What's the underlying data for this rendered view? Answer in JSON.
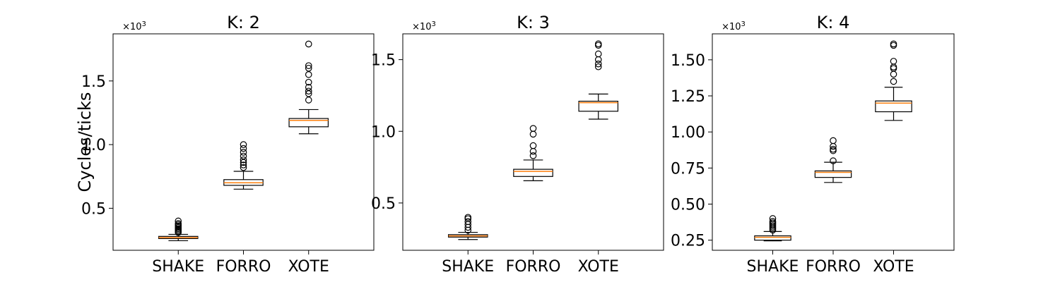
{
  "chart_data": [
    {
      "type": "box",
      "title": "K: 2",
      "ylabel": "Cycles/ticks",
      "multiplier": "×10",
      "multiplier_exp": "3",
      "ylim": [
        0.17,
        1.87
      ],
      "yticks": [
        0.5,
        1.0,
        1.5
      ],
      "ytick_labels": [
        "0.5",
        "1.0",
        "1.5"
      ],
      "categories": [
        "SHAKE",
        "FORRO",
        "XOTE"
      ],
      "boxes": [
        {
          "whislo": 0.245,
          "q1": 0.262,
          "med": 0.27,
          "q3": 0.279,
          "whishi": 0.295,
          "fliers": [
            0.31,
            0.32,
            0.33,
            0.34,
            0.35,
            0.36,
            0.37,
            0.38,
            0.4
          ]
        },
        {
          "whislo": 0.65,
          "q1": 0.68,
          "med": 0.7,
          "q3": 0.725,
          "whishi": 0.79,
          "fliers": [
            0.82,
            0.84,
            0.86,
            0.88,
            0.91,
            0.94,
            0.97,
            1.0
          ]
        },
        {
          "whislo": 1.085,
          "q1": 1.14,
          "med": 1.19,
          "q3": 1.205,
          "whishi": 1.275,
          "fliers": [
            1.35,
            1.4,
            1.42,
            1.45,
            1.49,
            1.55,
            1.6,
            1.62,
            1.79
          ]
        }
      ]
    },
    {
      "type": "box",
      "title": "K: 3",
      "ylabel": "",
      "multiplier": "×10",
      "multiplier_exp": "3",
      "ylim": [
        0.17,
        1.68
      ],
      "yticks": [
        0.5,
        1.0,
        1.5
      ],
      "ytick_labels": [
        "0.5",
        "1.0",
        "1.5"
      ],
      "categories": [
        "SHAKE",
        "FORRO",
        "XOTE"
      ],
      "boxes": [
        {
          "whislo": 0.245,
          "q1": 0.262,
          "med": 0.27,
          "q3": 0.279,
          "whishi": 0.295,
          "fliers": [
            0.31,
            0.33,
            0.35,
            0.37,
            0.39,
            0.4
          ]
        },
        {
          "whislo": 0.655,
          "q1": 0.685,
          "med": 0.72,
          "q3": 0.735,
          "whishi": 0.8,
          "fliers": [
            0.83,
            0.86,
            0.9,
            0.98,
            1.02
          ]
        },
        {
          "whislo": 1.085,
          "q1": 1.14,
          "med": 1.2,
          "q3": 1.21,
          "whishi": 1.26,
          "fliers": [
            1.45,
            1.47,
            1.5,
            1.54,
            1.6,
            1.61
          ]
        }
      ]
    },
    {
      "type": "box",
      "title": "K: 4",
      "ylabel": "",
      "multiplier": "×10",
      "multiplier_exp": "3",
      "ylim": [
        0.18,
        1.68
      ],
      "yticks": [
        0.25,
        0.5,
        0.75,
        1.0,
        1.25,
        1.5
      ],
      "ytick_labels": [
        "0.25",
        "0.50",
        "0.75",
        "1.00",
        "1.25",
        "1.50"
      ],
      "categories": [
        "SHAKE",
        "FORRO",
        "XOTE"
      ],
      "boxes": [
        {
          "whislo": 0.245,
          "q1": 0.25,
          "med": 0.27,
          "q3": 0.28,
          "whishi": 0.31,
          "fliers": [
            0.32,
            0.33,
            0.34,
            0.35,
            0.36,
            0.37,
            0.38,
            0.4
          ]
        },
        {
          "whislo": 0.65,
          "q1": 0.685,
          "med": 0.72,
          "q3": 0.73,
          "whishi": 0.79,
          "fliers": [
            0.8,
            0.87,
            0.88,
            0.9,
            0.94
          ]
        },
        {
          "whislo": 1.08,
          "q1": 1.14,
          "med": 1.2,
          "q3": 1.215,
          "whishi": 1.31,
          "fliers": [
            1.35,
            1.4,
            1.44,
            1.45,
            1.49,
            1.6,
            1.61
          ]
        }
      ]
    }
  ],
  "colors": {
    "median": "#ff7f0e",
    "box": "#000000",
    "flier": "#000000"
  }
}
